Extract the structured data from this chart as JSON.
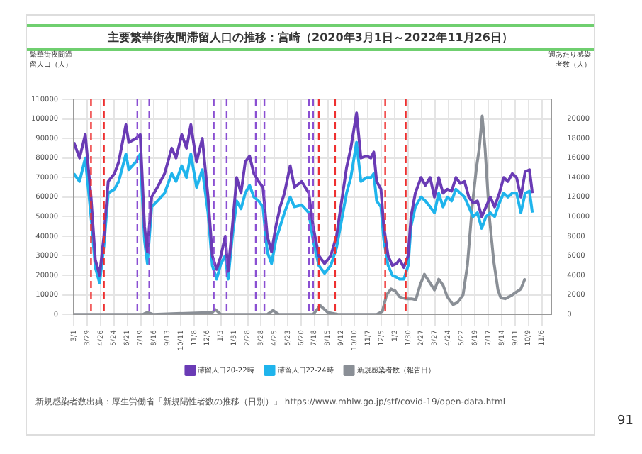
{
  "chart_data": {
    "type": "line",
    "title": "主要繁華街夜間滞留人口の推移：宮崎（2020年3月1日～2022年11月26日）",
    "ylabel": "繁華街夜間滞留人口（人）",
    "y2label": "週あたり感染者数（人）",
    "x": [
      "2020-03-01",
      "2020-03-13",
      "2020-03-25",
      "2020-04-06",
      "2020-04-15",
      "2020-04-24",
      "2020-05-03",
      "2020-05-12",
      "2020-05-25",
      "2020-06-03",
      "2020-06-18",
      "2020-06-24",
      "2020-07-09",
      "2020-07-18",
      "2020-07-27",
      "2020-08-02",
      "2020-08-11",
      "2020-08-23",
      "2020-09-07",
      "2020-09-22",
      "2020-10-01",
      "2020-10-13",
      "2020-10-23",
      "2020-11-01",
      "2020-11-13",
      "2020-11-25",
      "2020-12-07",
      "2020-12-16",
      "2020-12-25",
      "2021-01-03",
      "2021-01-12",
      "2021-01-18",
      "2021-01-27",
      "2021-02-05",
      "2021-02-14",
      "2021-02-23",
      "2021-03-04",
      "2021-03-13",
      "2021-03-23",
      "2021-04-01",
      "2021-04-10",
      "2021-04-19",
      "2021-04-28",
      "2021-05-07",
      "2021-05-16",
      "2021-05-28",
      "2021-06-06",
      "2021-06-21",
      "2021-07-06",
      "2021-07-15",
      "2021-07-27",
      "2021-08-08",
      "2021-08-21",
      "2021-09-02",
      "2021-09-14",
      "2021-09-23",
      "2021-10-02",
      "2021-10-14",
      "2021-10-23",
      "2021-11-04",
      "2021-11-13",
      "2021-11-19",
      "2021-11-25",
      "2021-12-04",
      "2021-12-10",
      "2021-12-19",
      "2021-12-28",
      "2022-01-06",
      "2022-01-12",
      "2022-01-21",
      "2022-01-30",
      "2022-02-05",
      "2022-02-14",
      "2022-02-26",
      "2022-03-07",
      "2022-03-17",
      "2022-03-26",
      "2022-04-04",
      "2022-04-13",
      "2022-04-22",
      "2022-05-01",
      "2022-05-10",
      "2022-05-19",
      "2022-05-28",
      "2022-06-06",
      "2022-06-15",
      "2022-06-24",
      "2022-07-03",
      "2022-07-12",
      "2022-07-21",
      "2022-07-30",
      "2022-08-09",
      "2022-08-18",
      "2022-08-27",
      "2022-09-05",
      "2022-09-14",
      "2022-09-23",
      "2022-10-02",
      "2022-10-11",
      "2022-10-17"
    ],
    "series": [
      {
        "name": "滞留人口20-22時",
        "color": "#6a3bb5",
        "values": [
          88000,
          80000,
          92000,
          60000,
          28000,
          20000,
          40000,
          68000,
          72000,
          78000,
          97000,
          88000,
          90000,
          92000,
          45000,
          32000,
          60000,
          65000,
          72000,
          85000,
          80000,
          92000,
          85000,
          97000,
          78000,
          90000,
          60000,
          30000,
          23000,
          30000,
          40000,
          22000,
          45000,
          70000,
          62000,
          78000,
          81000,
          72000,
          68000,
          65000,
          40000,
          32000,
          45000,
          55000,
          62000,
          76000,
          65000,
          68000,
          62000,
          45000,
          30000,
          26000,
          30000,
          40000,
          60000,
          75000,
          85000,
          103000,
          80000,
          81000,
          80000,
          83000,
          68000,
          64000,
          45000,
          30000,
          25000,
          26000,
          28000,
          24000,
          30000,
          50000,
          62000,
          70000,
          66000,
          70000,
          60000,
          70000,
          62000,
          64000,
          63000,
          70000,
          67000,
          68000,
          60000,
          57000,
          58000,
          50000,
          55000,
          60000,
          55000,
          62000,
          70000,
          68000,
          72000,
          70000,
          60000,
          73000,
          74000,
          62000
        ]
      },
      {
        "name": "滞留人口22-24時",
        "color": "#1fb4ec",
        "values": [
          72000,
          68000,
          80000,
          50000,
          24000,
          16000,
          35000,
          62000,
          64000,
          68000,
          82000,
          74000,
          78000,
          82000,
          38000,
          26000,
          55000,
          58000,
          62000,
          72000,
          68000,
          76000,
          70000,
          82000,
          65000,
          74000,
          52000,
          25000,
          18000,
          26000,
          30000,
          18000,
          40000,
          58000,
          54000,
          62000,
          66000,
          60000,
          58000,
          55000,
          32000,
          26000,
          38000,
          45000,
          52000,
          60000,
          55000,
          56000,
          52000,
          38000,
          25000,
          21000,
          25000,
          34000,
          50000,
          62000,
          70000,
          88000,
          68000,
          70000,
          70000,
          72000,
          58000,
          55000,
          38000,
          25000,
          20000,
          19000,
          18000,
          18000,
          25000,
          45000,
          55000,
          60000,
          58000,
          55000,
          52000,
          62000,
          55000,
          60000,
          58000,
          64000,
          62000,
          60000,
          55000,
          50000,
          52000,
          44000,
          50000,
          52000,
          50000,
          57000,
          62000,
          60000,
          62000,
          62000,
          52000,
          62000,
          63000,
          52000
        ]
      },
      {
        "name": "新規感染者数（報告日）",
        "color": "#8a8f96",
        "axis": "y2",
        "x": [
          "2020-03-01",
          "2020-07-24",
          "2020-08-02",
          "2020-08-14",
          "2020-12-16",
          "2020-12-22",
          "2021-01-03",
          "2021-04-10",
          "2021-04-22",
          "2021-05-04",
          "2021-07-15",
          "2021-07-30",
          "2021-08-15",
          "2021-09-05",
          "2021-11-25",
          "2021-12-07",
          "2021-12-16",
          "2021-12-25",
          "2022-01-03",
          "2022-01-12",
          "2022-01-25",
          "2022-02-06",
          "2022-02-15",
          "2022-02-24",
          "2022-03-05",
          "2022-03-17",
          "2022-03-26",
          "2022-04-04",
          "2022-04-13",
          "2022-04-22",
          "2022-05-04",
          "2022-05-13",
          "2022-05-25",
          "2022-06-03",
          "2022-06-13",
          "2022-06-22",
          "2022-06-28",
          "2022-07-04",
          "2022-07-10",
          "2022-07-19",
          "2022-07-28",
          "2022-08-06",
          "2022-08-12",
          "2022-08-21",
          "2022-09-02",
          "2022-09-14",
          "2022-09-23",
          "2022-10-02"
        ],
        "values": [
          0,
          0,
          200,
          0,
          200,
          500,
          0,
          0,
          400,
          0,
          0,
          900,
          200,
          0,
          0,
          300,
          2000,
          2600,
          2400,
          1800,
          1600,
          1600,
          1500,
          3000,
          4100,
          3200,
          2500,
          3600,
          3000,
          1800,
          1000,
          1200,
          2000,
          5000,
          11000,
          15000,
          17000,
          20300,
          17000,
          10000,
          5500,
          2500,
          1700,
          1600,
          1900,
          2300,
          2600,
          3700
        ]
      }
    ],
    "xlim": [
      "2020-03-01",
      "2022-11-26"
    ],
    "xticks": [
      {
        "value": "2020-03-01",
        "label": "3/1"
      },
      {
        "value": "2020-03-29",
        "label": "3/29"
      },
      {
        "value": "2020-04-26",
        "label": "4/26"
      },
      {
        "value": "2020-05-24",
        "label": "5/24"
      },
      {
        "value": "2020-06-21",
        "label": "6/21"
      },
      {
        "value": "2020-07-19",
        "label": "7/19"
      },
      {
        "value": "2020-08-16",
        "label": "8/16"
      },
      {
        "value": "2020-09-13",
        "label": "9/13"
      },
      {
        "value": "2020-10-11",
        "label": "10/11"
      },
      {
        "value": "2020-11-08",
        "label": "11/8"
      },
      {
        "value": "2020-12-06",
        "label": "12/6"
      },
      {
        "value": "2021-01-03",
        "label": "1/3"
      },
      {
        "value": "2021-01-31",
        "label": "1/31"
      },
      {
        "value": "2021-02-28",
        "label": "2/28"
      },
      {
        "value": "2021-03-28",
        "label": "3/28"
      },
      {
        "value": "2021-04-25",
        "label": "4/25"
      },
      {
        "value": "2021-05-23",
        "label": "5/23"
      },
      {
        "value": "2021-06-20",
        "label": "6/20"
      },
      {
        "value": "2021-07-18",
        "label": "7/18"
      },
      {
        "value": "2021-08-15",
        "label": "8/15"
      },
      {
        "value": "2021-09-12",
        "label": "9/12"
      },
      {
        "value": "2021-10-10",
        "label": "10/10"
      },
      {
        "value": "2021-11-07",
        "label": "11/7"
      },
      {
        "value": "2021-12-05",
        "label": "12/5"
      },
      {
        "value": "2022-01-02",
        "label": "1/2"
      },
      {
        "value": "2022-01-30",
        "label": "1/30"
      },
      {
        "value": "2022-02-27",
        "label": "2/27"
      },
      {
        "value": "2022-03-27",
        "label": "3/27"
      },
      {
        "value": "2022-04-24",
        "label": "4/24"
      },
      {
        "value": "2022-05-22",
        "label": "5/22"
      },
      {
        "value": "2022-06-19",
        "label": "6/19"
      },
      {
        "value": "2022-07-17",
        "label": "7/17"
      },
      {
        "value": "2022-08-14",
        "label": "8/14"
      },
      {
        "value": "2022-09-11",
        "label": "9/11"
      },
      {
        "value": "2022-10-09",
        "label": "10/9"
      },
      {
        "value": "2022-11-06",
        "label": "11/6"
      }
    ],
    "ylim": [
      0,
      110000
    ],
    "yticks": [
      0,
      10000,
      20000,
      30000,
      40000,
      50000,
      60000,
      70000,
      80000,
      90000,
      100000,
      110000
    ],
    "y2lim": [
      0,
      22000
    ],
    "y2ticks": [
      0,
      2000,
      4000,
      6000,
      8000,
      10000,
      12000,
      14000,
      16000,
      18000,
      20000
    ],
    "ref_lines": [
      {
        "axis": "x",
        "value": "2020-04-06",
        "color": "#ee3030",
        "line_style": "dashed"
      },
      {
        "axis": "x",
        "value": "2020-05-03",
        "color": "#ee3030",
        "line_style": "dashed"
      },
      {
        "axis": "x",
        "value": "2020-07-12",
        "color": "#8a4fd2",
        "line_style": "dashed"
      },
      {
        "axis": "x",
        "value": "2020-08-06",
        "color": "#8a4fd2",
        "line_style": "dashed"
      },
      {
        "axis": "x",
        "value": "2020-12-19",
        "color": "#8a4fd2",
        "line_style": "dashed"
      },
      {
        "axis": "x",
        "value": "2021-01-15",
        "color": "#8a4fd2",
        "line_style": "dashed"
      },
      {
        "axis": "x",
        "value": "2021-03-17",
        "color": "#8a4fd2",
        "line_style": "dashed"
      },
      {
        "axis": "x",
        "value": "2021-04-04",
        "color": "#8a4fd2",
        "line_style": "dashed"
      },
      {
        "axis": "x",
        "value": "2021-07-06",
        "color": "#8a4fd2",
        "line_style": "dashed"
      },
      {
        "axis": "x",
        "value": "2021-07-15",
        "color": "#8a4fd2",
        "line_style": "dashed"
      },
      {
        "axis": "x",
        "value": "2021-07-27",
        "color": "#ee3030",
        "line_style": "dashed"
      },
      {
        "axis": "x",
        "value": "2021-08-30",
        "color": "#ee3030",
        "line_style": "dashed"
      },
      {
        "axis": "x",
        "value": "2021-12-13",
        "color": "#ee3030",
        "line_style": "dashed"
      },
      {
        "axis": "x",
        "value": "2022-01-25",
        "color": "#ee3030",
        "line_style": "dashed"
      }
    ],
    "grid": true,
    "legend": "bottom",
    "marker": "none",
    "line_style": "solid",
    "annotations": [
      "新規感染者数出典：厚生労働省「新規陽性者数の推移（日別）」 https://www.mhlw.go.jp/stf/covid-19/open-data.html",
      "91"
    ]
  }
}
